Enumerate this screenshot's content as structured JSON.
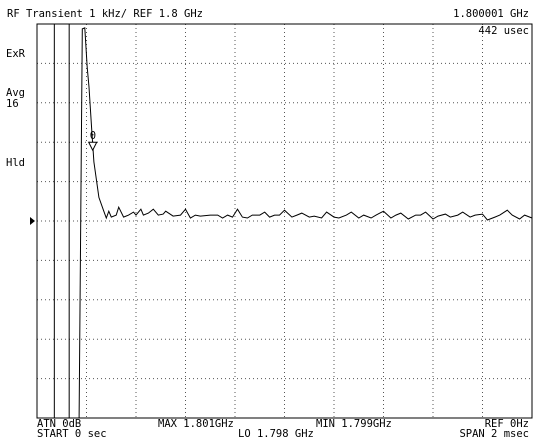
{
  "header": {
    "title": "RF Transient  1 kHz/ REF 1.8 GHz",
    "freq_readout": "1.800001 GHz",
    "time_readout": "442 usec"
  },
  "side": {
    "exr": "ExR",
    "avg": "Avg",
    "avg_count": "16",
    "hld": "Hld"
  },
  "footer": {
    "atn": "ATN 0dB",
    "max": "MAX 1.801GHz",
    "min": "MIN 1.799GHz",
    "ref": "REF 0Hz",
    "start": "START  0 sec",
    "lo": "LO  1.798 GHz",
    "span": "SPAN  2 msec"
  },
  "marker_label": "0",
  "chart_data": {
    "type": "line",
    "xlabel": "",
    "ylabel": "",
    "xlim": [
      0,
      2
    ],
    "x_unit": "msec",
    "ylim": [
      1.799,
      1.801
    ],
    "y_unit": "GHz",
    "reference": 1.8,
    "grid": true,
    "series": [
      {
        "x": [
          0.0,
          0.08,
          0.17,
          0.183,
          0.193,
          0.203,
          0.21,
          0.22,
          0.23,
          0.25,
          0.27,
          0.28,
          0.29,
          0.3,
          0.32,
          0.33,
          0.35,
          0.37,
          0.39,
          0.4,
          0.42,
          0.43,
          0.45,
          0.47,
          0.49,
          0.51,
          0.52,
          0.55,
          0.58,
          0.6,
          0.62,
          0.64,
          0.66,
          0.7,
          0.73,
          0.75,
          0.77,
          0.79,
          0.81,
          0.83,
          0.85,
          0.87,
          0.9,
          0.92,
          0.94,
          0.96,
          0.98,
          1.0,
          1.03,
          1.05,
          1.07,
          1.1,
          1.12,
          1.15,
          1.17,
          1.2,
          1.22,
          1.25,
          1.27,
          1.3,
          1.32,
          1.35,
          1.37,
          1.4,
          1.43,
          1.45,
          1.47,
          1.5,
          1.53,
          1.55,
          1.57,
          1.6,
          1.62,
          1.65,
          1.67,
          1.7,
          1.72,
          1.75,
          1.77,
          1.8,
          1.82,
          1.85,
          1.87,
          1.9,
          1.92,
          1.95,
          1.97,
          2.0
        ],
        "y": [
          1.799,
          1.799,
          1.799,
          1.800975,
          1.80098,
          1.80078,
          1.80068,
          1.80048,
          1.8003,
          1.80012,
          1.80005,
          1.800015,
          1.80005,
          1.80002,
          1.80003,
          1.80007,
          1.80002,
          1.80003,
          1.800045,
          1.80003,
          1.80006,
          1.80003,
          1.80004,
          1.80006,
          1.80003,
          1.800035,
          1.80005,
          1.800025,
          1.80003,
          1.80006,
          1.800015,
          1.80003,
          1.800025,
          1.80003,
          1.80003,
          1.800015,
          1.80003,
          1.80002,
          1.80006,
          1.80002,
          1.800015,
          1.80003,
          1.80003,
          1.800045,
          1.80002,
          1.80003,
          1.80003,
          1.800055,
          1.80002,
          1.80003,
          1.80004,
          1.80002,
          1.800025,
          1.800015,
          1.800045,
          1.80002,
          1.800015,
          1.80003,
          1.800045,
          1.800015,
          1.80003,
          1.800015,
          1.80003,
          1.80005,
          1.800015,
          1.80003,
          1.80004,
          1.80001,
          1.80003,
          1.80003,
          1.800045,
          1.80001,
          1.800025,
          1.800035,
          1.80002,
          1.80003,
          1.800045,
          1.80002,
          1.80003,
          1.800035,
          1.800005,
          1.80002,
          1.80003,
          1.800055,
          1.80003,
          1.80001,
          1.80003,
          1.800015
        ]
      }
    ]
  }
}
